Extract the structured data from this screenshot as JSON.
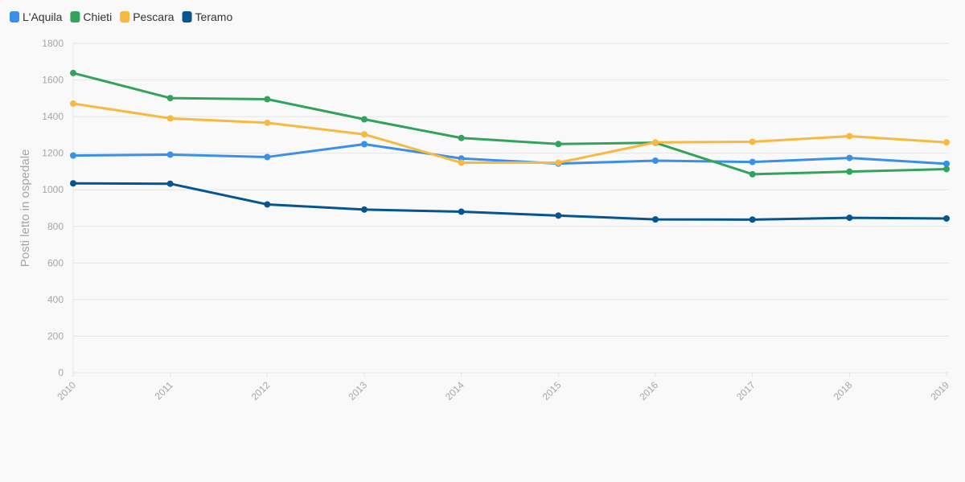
{
  "chart_data": {
    "type": "line",
    "title": "",
    "xlabel": "",
    "ylabel": "Posti letto in ospedale",
    "x": [
      "2010",
      "2011",
      "2012",
      "2013",
      "2014",
      "2015",
      "2016",
      "2017",
      "2018",
      "2019"
    ],
    "ylim": [
      0,
      1800
    ],
    "yticks": [
      0,
      200,
      400,
      600,
      800,
      1000,
      1200,
      1400,
      1600,
      1800
    ],
    "grid": true,
    "legend_position": "top-left",
    "series": [
      {
        "name": "L'Aquila",
        "color": "#3a8fea",
        "values": [
          1187,
          1192,
          1179,
          1249,
          1171,
          1143,
          1159,
          1152,
          1174,
          1142
        ]
      },
      {
        "name": "Chieti",
        "color": "#33a35c",
        "values": [
          1638,
          1501,
          1495,
          1385,
          1283,
          1250,
          1257,
          1085,
          1099,
          1113
        ]
      },
      {
        "name": "Pescara",
        "color": "#f8b93f",
        "values": [
          1471,
          1390,
          1366,
          1303,
          1148,
          1148,
          1259,
          1262,
          1293,
          1259
        ]
      },
      {
        "name": "Teramo",
        "color": "#065590",
        "values": [
          1035,
          1033,
          920,
          892,
          880,
          859,
          838,
          837,
          847,
          843
        ]
      }
    ]
  }
}
